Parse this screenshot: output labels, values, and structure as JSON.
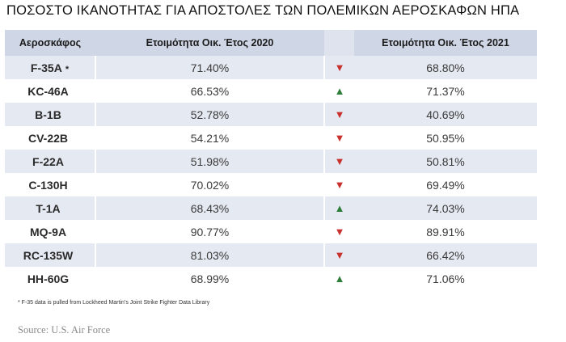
{
  "title": "ΠΟΣΟΣΤΟ ΙΚΑΝΟΤΗΤΑΣ ΓΙΑ ΑΠΟΣΤΟΛΕΣ ΤΩΝ ΠΟΛΕΜΙΚΩΝ ΑΕΡΟΣΚΑΦΩΝ ΗΠΑ",
  "table": {
    "headers": {
      "aircraft": "Αεροσκάφος",
      "fy2020": "Ετοιμότητα Οικ. Έτος 2020",
      "trend": "",
      "fy2021": "Ετοιμότητα Οικ. Έτος 2021"
    },
    "rows": [
      {
        "aircraft": "F-35A",
        "marker": "*",
        "fy2020": "71.40%",
        "trend_icon": "▼",
        "trend": "down",
        "fy2021": "68.80%"
      },
      {
        "aircraft": "KC-46A",
        "marker": "",
        "fy2020": "66.53%",
        "trend_icon": "▲",
        "trend": "up",
        "fy2021": "71.37%"
      },
      {
        "aircraft": "B-1B",
        "marker": "",
        "fy2020": "52.78%",
        "trend_icon": "▼",
        "trend": "down",
        "fy2021": "40.69%"
      },
      {
        "aircraft": "CV-22B",
        "marker": "",
        "fy2020": "54.21%",
        "trend_icon": "▼",
        "trend": "down",
        "fy2021": "50.95%"
      },
      {
        "aircraft": "F-22A",
        "marker": "",
        "fy2020": "51.98%",
        "trend_icon": "▼",
        "trend": "down",
        "fy2021": "50.81%"
      },
      {
        "aircraft": "C-130H",
        "marker": "",
        "fy2020": "70.02%",
        "trend_icon": "▼",
        "trend": "down",
        "fy2021": "69.49%"
      },
      {
        "aircraft": "T-1A",
        "marker": "",
        "fy2020": "68.43%",
        "trend_icon": "▲",
        "trend": "up",
        "fy2021": "74.03%"
      },
      {
        "aircraft": "MQ-9A",
        "marker": "",
        "fy2020": "90.77%",
        "trend_icon": "▼",
        "trend": "down",
        "fy2021": "89.91%"
      },
      {
        "aircraft": "RC-135W",
        "marker": "",
        "fy2020": "81.03%",
        "trend_icon": "▼",
        "trend": "down",
        "fy2021": "66.42%"
      },
      {
        "aircraft": "HH-60G",
        "marker": "",
        "fy2020": "68.99%",
        "trend_icon": "▲",
        "trend": "up",
        "fy2021": "71.06%"
      }
    ]
  },
  "colors": {
    "header_bg": "#cfd6e6",
    "row_alt_bg": "#e5e9f2",
    "down_arrow": "#c8312d",
    "up_arrow": "#2f7d3a"
  },
  "footnote": "* F-35 data is pulled from Lockheed Martin’s Joint Strike Fighter Data Library",
  "source": "Source: U.S. Air Force"
}
